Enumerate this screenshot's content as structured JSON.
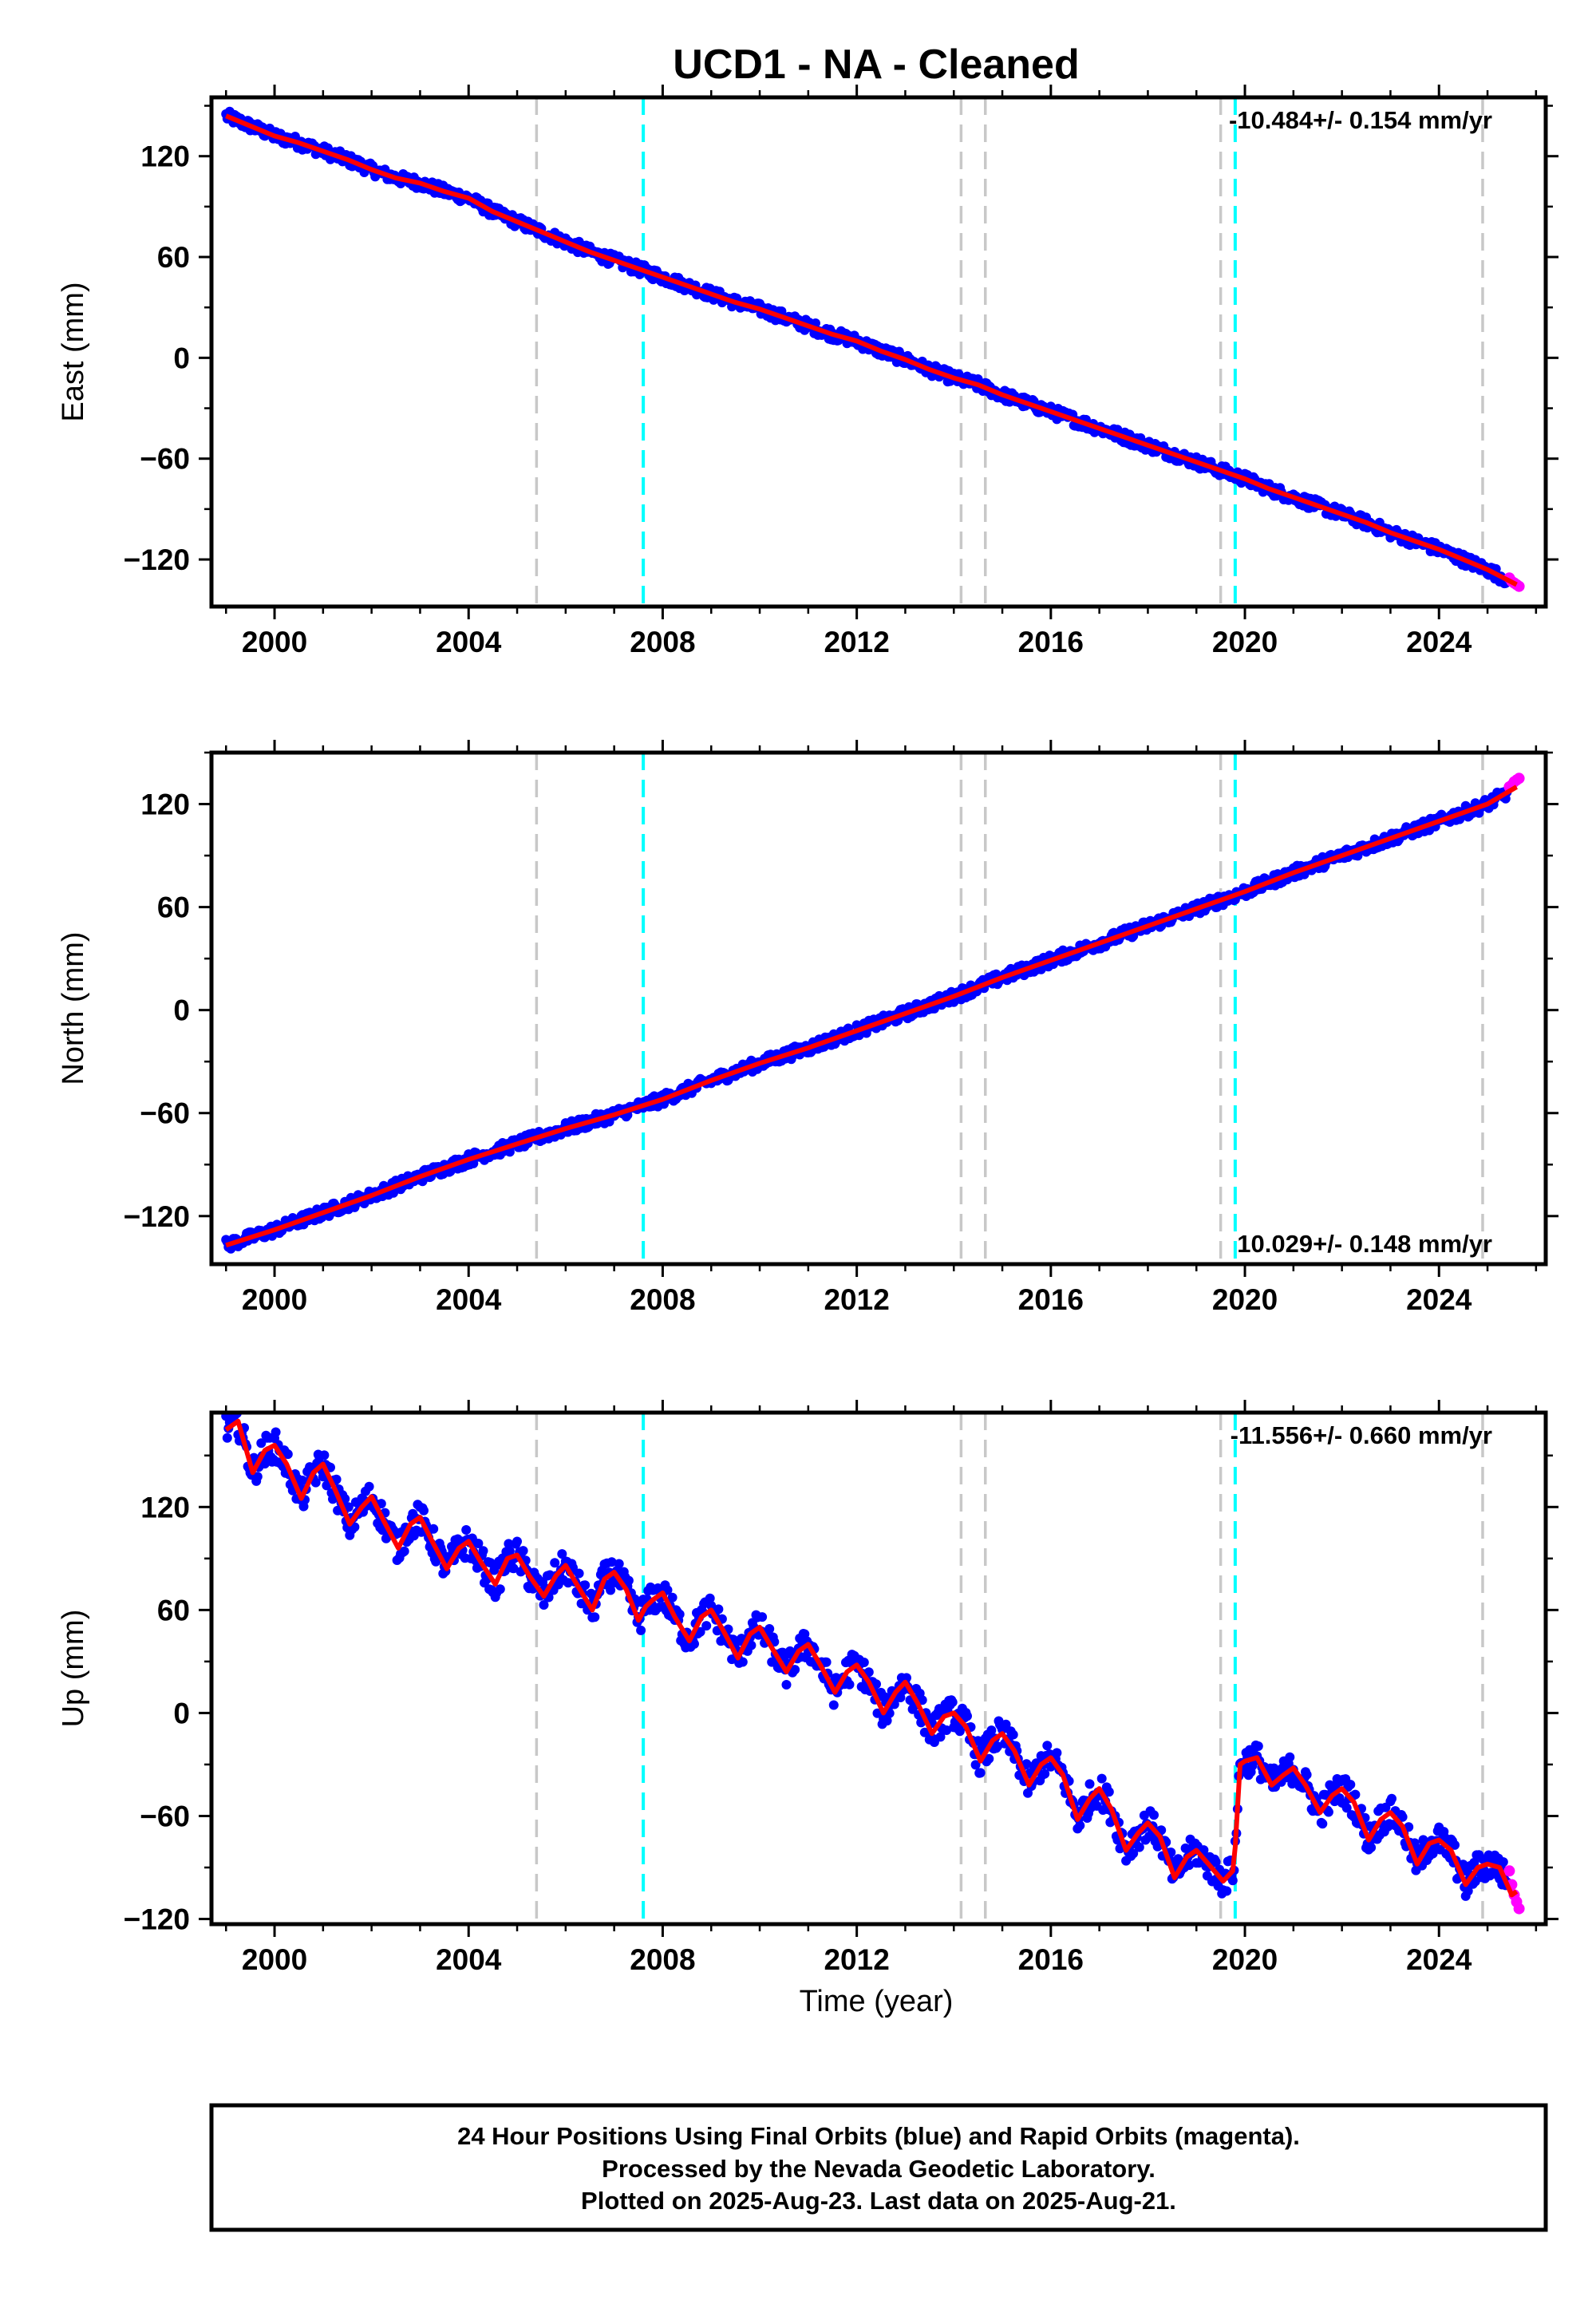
{
  "chart_data": {
    "type": "scatter",
    "title": "UCD1  - NA - Cleaned",
    "xlabel": "Time (year)",
    "xlim": [
      1998.7,
      2026.2
    ],
    "xticks": [
      2000,
      2004,
      2008,
      2012,
      2016,
      2020,
      2024
    ],
    "xtick_labels": [
      "2000",
      "2004",
      "2008",
      "2012",
      "2016",
      "2020",
      "2024"
    ],
    "colors": {
      "final_orbits": "#0000ff",
      "rapid_orbits": "#ff00ff",
      "model": "#ff0000",
      "equipment_change": "#c8c8c8",
      "earthquake": "#00ffff",
      "axes": "#000000"
    },
    "vertical_lines": [
      {
        "kind": "equipment_change",
        "x": 2005.4
      },
      {
        "kind": "earthquake",
        "x": 2007.6
      },
      {
        "kind": "equipment_change",
        "x": 2014.15
      },
      {
        "kind": "equipment_change",
        "x": 2014.65
      },
      {
        "kind": "equipment_change",
        "x": 2019.5
      },
      {
        "kind": "earthquake",
        "x": 2019.8
      },
      {
        "kind": "equipment_change",
        "x": 2024.9
      }
    ],
    "panels": [
      {
        "id": "east",
        "ylabel": "East (mm)",
        "ylim": [
          -148,
          155
        ],
        "yticks": [
          -120,
          -60,
          0,
          60,
          120
        ],
        "ytick_labels": [
          "−120",
          "−60",
          "0",
          "60",
          "120"
        ],
        "rate_label": "-10.484+/- 0.154 mm/yr",
        "rate_position": "top-right",
        "series": [
          {
            "name": "model",
            "x": [
              1999.0,
              1999.5,
              2000.0,
              2000.5,
              2001.0,
              2001.5,
              2002.0,
              2002.5,
              2003.0,
              2003.5,
              2004.0,
              2004.5,
              2005.0,
              2005.5,
              2006.0,
              2006.5,
              2007.0,
              2007.5,
              2008.0,
              2008.5,
              2009.0,
              2009.5,
              2010.0,
              2010.5,
              2011.0,
              2011.5,
              2012.0,
              2012.5,
              2013.0,
              2013.5,
              2014.0,
              2014.5,
              2015.0,
              2015.5,
              2016.0,
              2016.5,
              2017.0,
              2017.5,
              2018.0,
              2018.5,
              2019.0,
              2019.5,
              2020.0,
              2020.5,
              2021.0,
              2021.5,
              2022.0,
              2022.5,
              2023.0,
              2023.5,
              2024.0,
              2024.5,
              2025.0,
              2025.6
            ],
            "y": [
              144,
              138,
              132,
              128,
              123,
              118,
              112,
              107,
              104,
              99,
              95,
              87,
              81,
              75,
              69,
              63,
              58,
              53,
              48,
              43,
              38,
              33,
              29,
              24,
              19,
              14,
              10,
              4,
              -1,
              -7,
              -12,
              -16,
              -22,
              -27,
              -32,
              -37,
              -42,
              -47,
              -52,
              -57,
              -62,
              -67,
              -72,
              -78,
              -83,
              -88,
              -93,
              -98,
              -104,
              -109,
              -114,
              -120,
              -126,
              -135
            ]
          },
          {
            "name": "rapid",
            "x": [
              2025.45,
              2025.5,
              2025.55,
              2025.6,
              2025.65
            ],
            "y": [
              -131,
              -133,
              -134,
              -135,
              -136
            ]
          }
        ]
      },
      {
        "id": "north",
        "ylabel": "North (mm)",
        "ylim": [
          -148,
          150
        ],
        "yticks": [
          -120,
          -60,
          0,
          60,
          120
        ],
        "ytick_labels": [
          "−120",
          "−60",
          "0",
          "60",
          "120"
        ],
        "rate_label": "10.029+/- 0.148 mm/yr",
        "rate_position": "bottom-right",
        "series": [
          {
            "name": "model",
            "x": [
              1999.0,
              2000.0,
              2001.0,
              2002.0,
              2003.0,
              2004.0,
              2005.0,
              2006.0,
              2007.0,
              2008.0,
              2009.0,
              2010.0,
              2011.0,
              2012.0,
              2013.0,
              2014.0,
              2015.0,
              2016.0,
              2017.0,
              2018.0,
              2019.0,
              2020.0,
              2021.0,
              2022.0,
              2023.0,
              2024.0,
              2025.0,
              2025.6
            ],
            "y": [
              -137,
              -128,
              -118,
              -108,
              -97,
              -87,
              -78,
              -69,
              -61,
              -52,
              -41,
              -31,
              -22,
              -12,
              -2,
              8,
              19,
              29,
              39,
              49,
              59,
              69,
              80,
              90,
              100,
              110,
              120,
              130
            ]
          },
          {
            "name": "rapid",
            "x": [
              2025.45,
              2025.5,
              2025.55,
              2025.6,
              2025.65
            ],
            "y": [
              130,
              131,
              133,
              134,
              135
            ]
          }
        ]
      },
      {
        "id": "up",
        "ylabel": "Up (mm)",
        "ylim": [
          -123,
          175
        ],
        "yticks": [
          -120,
          -60,
          0,
          60,
          120
        ],
        "ytick_labels": [
          "−120",
          "−60",
          "0",
          "60",
          "120"
        ],
        "rate_label": "-11.556+/- 0.660 mm/yr",
        "rate_position": "top-right",
        "series": [
          {
            "name": "model",
            "x": [
              1999.0,
              1999.25,
              1999.55,
              1999.8,
              2000.0,
              2000.25,
              2000.55,
              2000.8,
              2001.0,
              2001.25,
              2001.55,
              2001.8,
              2002.0,
              2002.25,
              2002.55,
              2002.8,
              2003.0,
              2003.25,
              2003.55,
              2003.8,
              2004.0,
              2004.25,
              2004.55,
              2004.8,
              2005.0,
              2005.25,
              2005.55,
              2005.8,
              2006.0,
              2006.25,
              2006.55,
              2006.8,
              2007.0,
              2007.25,
              2007.5,
              2007.65,
              2007.8,
              2008.0,
              2008.25,
              2008.55,
              2008.8,
              2009.0,
              2009.25,
              2009.55,
              2009.8,
              2010.0,
              2010.25,
              2010.55,
              2010.8,
              2011.0,
              2011.25,
              2011.55,
              2011.8,
              2012.0,
              2012.25,
              2012.55,
              2012.8,
              2013.0,
              2013.25,
              2013.55,
              2013.8,
              2014.0,
              2014.25,
              2014.55,
              2014.8,
              2015.0,
              2015.25,
              2015.55,
              2015.8,
              2016.0,
              2016.25,
              2016.55,
              2016.8,
              2017.0,
              2017.25,
              2017.55,
              2017.8,
              2018.0,
              2018.25,
              2018.55,
              2018.8,
              2019.0,
              2019.25,
              2019.55,
              2019.75,
              2019.8,
              2019.9,
              2020.0,
              2020.25,
              2020.55,
              2020.8,
              2021.0,
              2021.25,
              2021.55,
              2021.8,
              2022.0,
              2022.25,
              2022.55,
              2022.8,
              2023.0,
              2023.25,
              2023.55,
              2023.8,
              2024.0,
              2024.25,
              2024.55,
              2024.8,
              2025.0,
              2025.25,
              2025.5,
              2025.6
            ],
            "y": [
              165,
              170,
              140,
              153,
              156,
              145,
              125,
              140,
              145,
              130,
              110,
              120,
              126,
              112,
              96,
              110,
              114,
              100,
              84,
              96,
              100,
              88,
              75,
              90,
              92,
              80,
              68,
              80,
              86,
              74,
              60,
              78,
              82,
              72,
              54,
              62,
              66,
              70,
              56,
              42,
              56,
              60,
              48,
              32,
              46,
              50,
              38,
              24,
              36,
              40,
              28,
              12,
              24,
              28,
              18,
              0,
              12,
              18,
              6,
              -12,
              -2,
              0,
              -8,
              -28,
              -16,
              -12,
              -22,
              -42,
              -30,
              -26,
              -36,
              -62,
              -50,
              -44,
              -56,
              -80,
              -70,
              -64,
              -72,
              -96,
              -84,
              -80,
              -88,
              -98,
              -92,
              -78,
              -30,
              -28,
              -26,
              -42,
              -36,
              -32,
              -42,
              -58,
              -48,
              -44,
              -52,
              -74,
              -62,
              -58,
              -66,
              -88,
              -76,
              -74,
              -80,
              -100,
              -90,
              -88,
              -90,
              -106,
              -104
            ]
          },
          {
            "name": "rapid",
            "x": [
              2025.45,
              2025.5,
              2025.55,
              2025.6,
              2025.65
            ],
            "y": [
              -92,
              -100,
              -106,
              -110,
              -114
            ]
          }
        ]
      }
    ],
    "footer_lines": [
      "24 Hour Positions Using Final Orbits (blue) and Rapid Orbits (magenta).",
      "Processed by the Nevada Geodetic Laboratory.",
      "Plotted on 2025-Aug-23. Last data on 2025-Aug-21."
    ]
  }
}
